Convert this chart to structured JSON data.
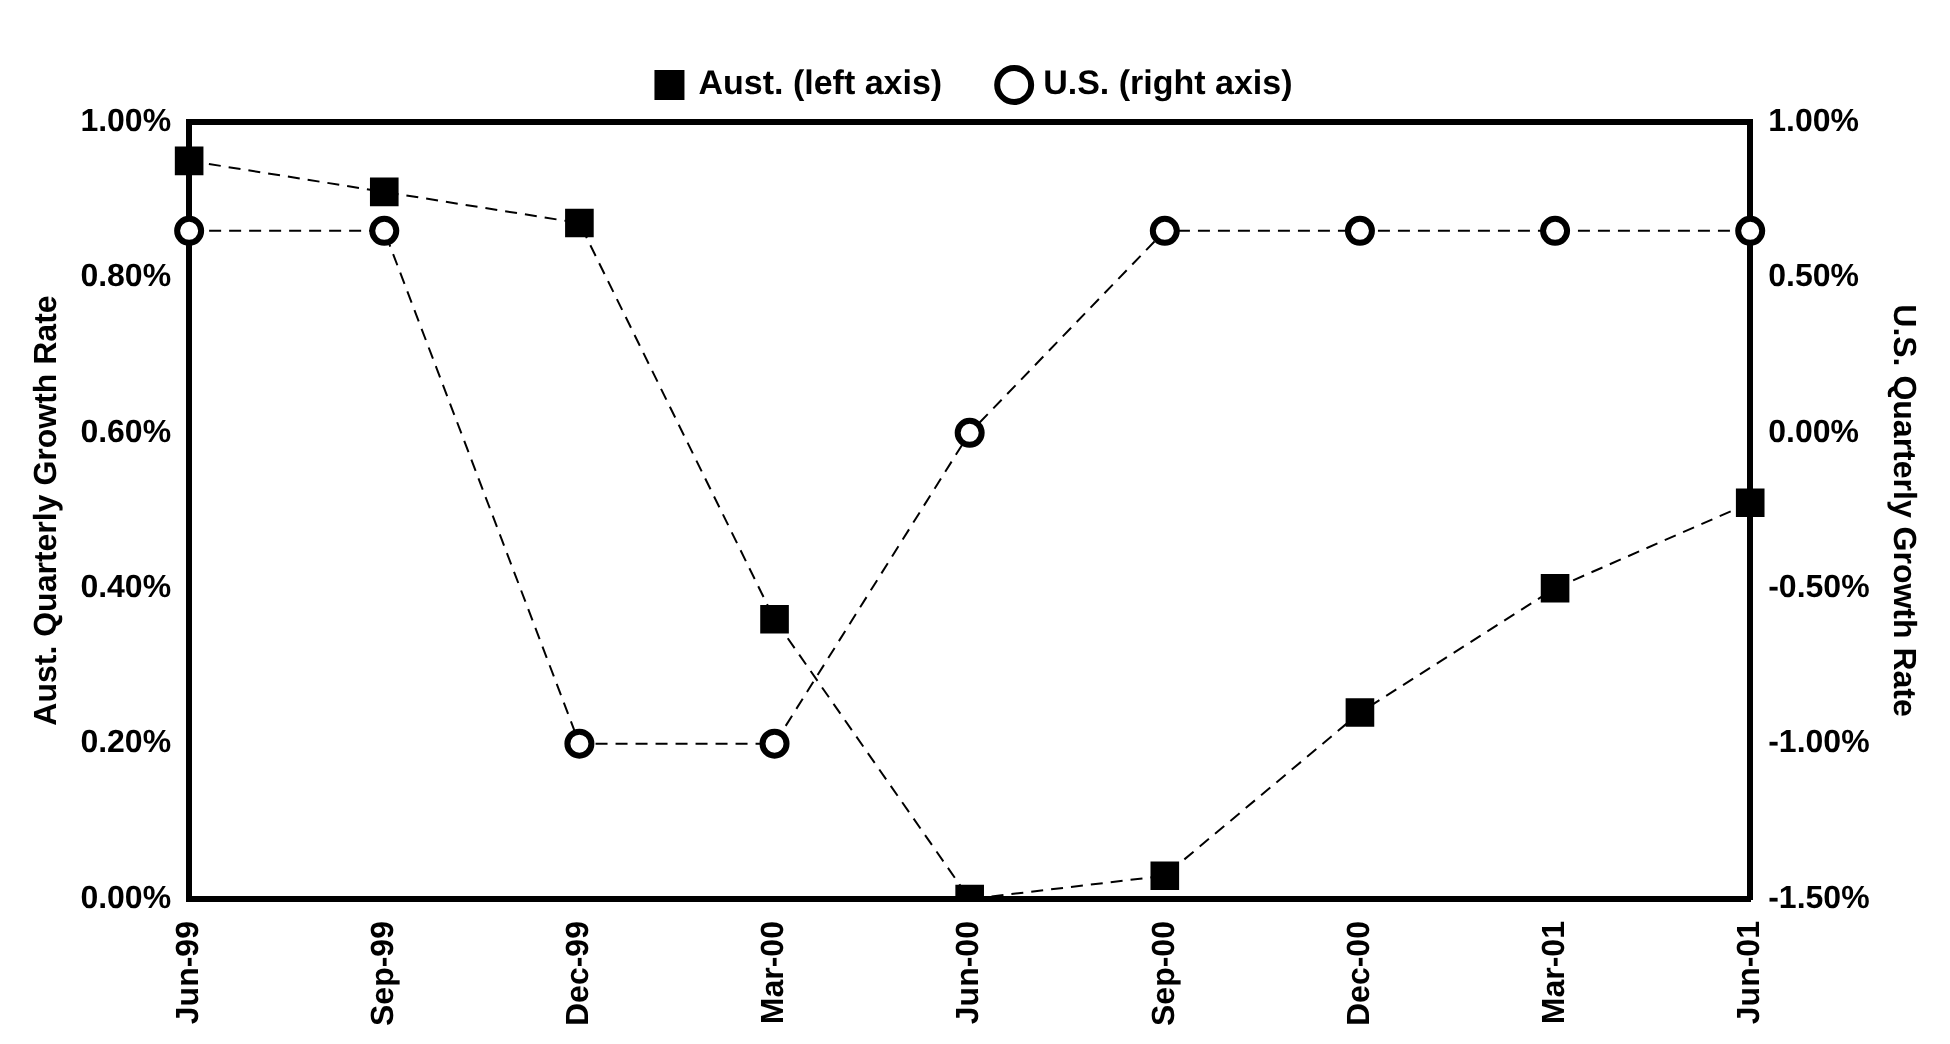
{
  "chart_data": {
    "type": "line",
    "ylabel": "Aust. Quarterly Growth Rate",
    "y2label": "U.S. Quarterly Growth Rate",
    "categories": [
      "Jun-99",
      "Sep-99",
      "Dec-99",
      "Mar-00",
      "Jun-00",
      "Sep-00",
      "Dec-00",
      "Mar-01",
      "Jun-01"
    ],
    "series": [
      {
        "name": "Aust. (left axis)",
        "color": "#000000",
        "marker": "square",
        "values": [
          0.95,
          0.91,
          0.87,
          0.36,
          0,
          0.03,
          0.24,
          0.4,
          0.51
        ]
      },
      {
        "name": "U.S. (right axis)",
        "color": "#000000",
        "marker": "circle",
        "axis": "y2",
        "values": [
          0.65,
          0.65,
          -1.0,
          -1.0,
          0,
          0.65,
          0.65,
          0.65,
          0.65
        ]
      }
    ],
    "ylim": [
      0,
      1
    ],
    "yticks": [
      {
        "value": 0,
        "label": "0.00%"
      },
      {
        "value": 0.2,
        "label": "0.20%"
      },
      {
        "value": 0.4,
        "label": "0.40%"
      },
      {
        "value": 0.6,
        "label": "0.60%"
      },
      {
        "value": 0.8,
        "label": "0.80%"
      },
      {
        "value": 1,
        "label": "1.00%"
      }
    ],
    "y2lim": [
      -1.5,
      1
    ],
    "y2ticks": [
      {
        "value": -1.5,
        "label": "-1.50%"
      },
      {
        "value": -1,
        "label": "-1.00%"
      },
      {
        "value": -0.5,
        "label": "-0.50%"
      },
      {
        "value": 0,
        "label": "0.00%"
      },
      {
        "value": 0.5,
        "label": "0.50%"
      },
      {
        "value": 1,
        "label": "1.00%"
      }
    ],
    "legend": "top",
    "line_style": "dashed",
    "grid": false
  }
}
